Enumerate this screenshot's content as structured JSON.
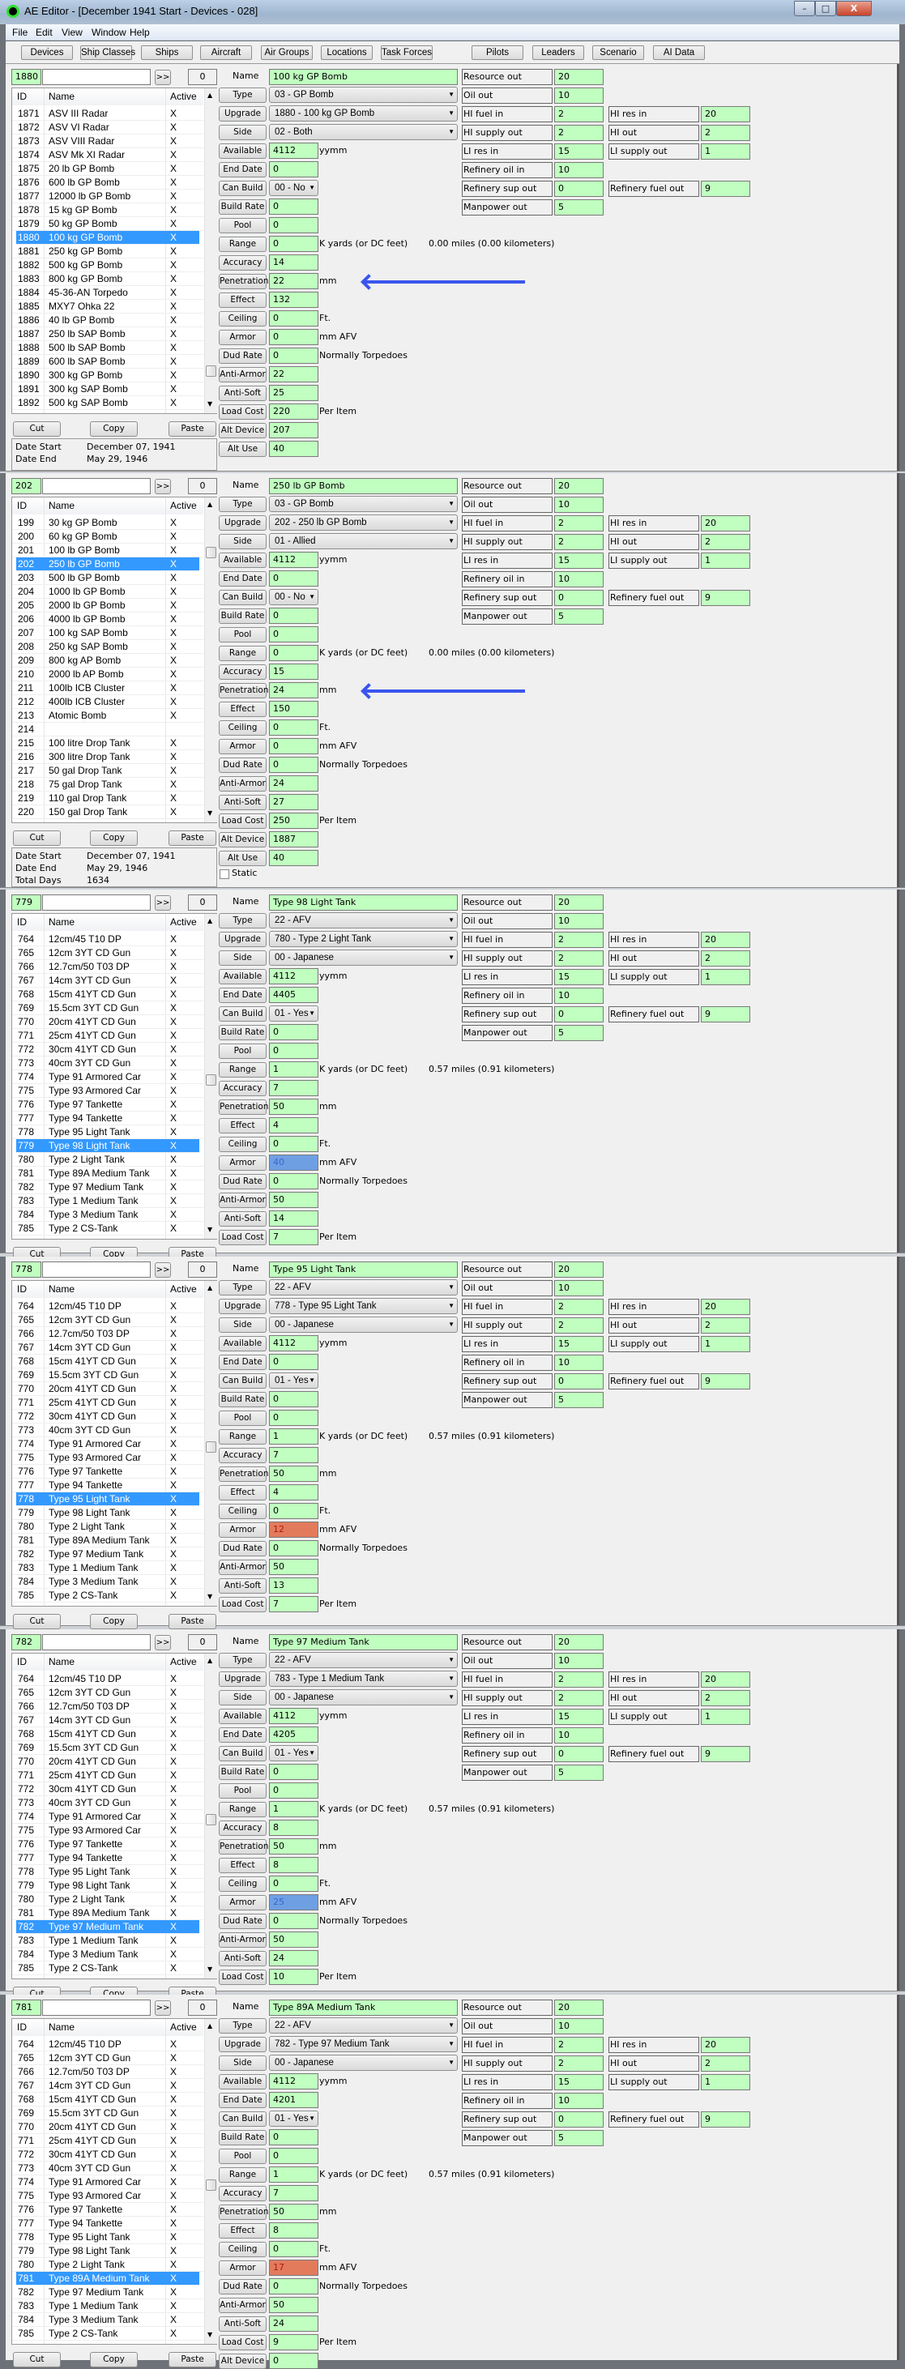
{
  "window": {
    "title": "AE Editor - [December 1941 Start - Devices - 028]",
    "controls": {
      "minimize": "–",
      "maximize": "□",
      "close": "X"
    },
    "menu": [
      "File",
      "Edit",
      "View",
      "Window",
      "Help"
    ],
    "toolbar": [
      "Devices",
      "Ship Classes",
      "Ships",
      "Aircraft",
      "Air Groups",
      "Locations",
      "Task Forces",
      "Pilots",
      "Leaders",
      "Scenario",
      "AI Data"
    ]
  },
  "labels": {
    "search_go": ">>",
    "name": "Name",
    "list_headers": [
      "ID",
      "Name",
      "Active"
    ],
    "fields": {
      "type": "Type",
      "upgrade": "Upgrade",
      "side": "Side",
      "available": "Available",
      "end_date": "End Date",
      "can_build": "Can Build",
      "build_rate": "Build Rate",
      "pool": "Pool",
      "range": "Range",
      "accuracy": "Accuracy",
      "penetration": "Penetration",
      "effect": "Effect",
      "ceiling": "Ceiling",
      "armor": "Armor",
      "dud_rate": "Dud Rate",
      "anti_armor": "Anti-Armor",
      "anti_soft": "Anti-Soft",
      "load_cost": "Load Cost",
      "alt_device": "Alt Device",
      "alt_use": "Alt Use"
    },
    "units": {
      "available": "yymm",
      "penetration": "mm",
      "ceiling": "Ft.",
      "armor": "mm AFV",
      "dud_rate": "Normally Torpedoes",
      "load_cost": "Per Item",
      "range_prefix": "K yards  (or DC feet)"
    },
    "cut": "Cut",
    "copy": "Copy",
    "paste": "Paste",
    "date_start": "Date Start",
    "date_end": "Date End",
    "total_days": "Total Days",
    "static": "Static"
  },
  "resources": [
    {
      "label": "Resource out",
      "value": "20"
    },
    {
      "label": "Oil out",
      "value": "10"
    },
    {
      "label": "HI fuel in",
      "value": "2",
      "label2": "HI res in",
      "value2": "20"
    },
    {
      "label": "HI supply out",
      "value": "2",
      "label2": "HI out",
      "value2": "2"
    },
    {
      "label": "LI res in",
      "value": "15",
      "label2": "LI supply out",
      "value2": "1"
    },
    {
      "label": "Refinery oil in",
      "value": "10"
    },
    {
      "label": "Refinery sup out",
      "value": "0",
      "label2": "Refinery fuel out",
      "value2": "9"
    },
    {
      "label": "Manpower out",
      "value": "5"
    }
  ],
  "lists": {
    "bombs_1871": [
      [
        "1871",
        "ASV III Radar",
        "X"
      ],
      [
        "1872",
        "ASV VI Radar",
        "X"
      ],
      [
        "1873",
        "ASV VIII Radar",
        "X"
      ],
      [
        "1874",
        "ASV Mk XI Radar",
        "X"
      ],
      [
        "1875",
        "20 lb GP Bomb",
        "X"
      ],
      [
        "1876",
        "600 lb GP Bomb",
        "X"
      ],
      [
        "1877",
        "12000 lb GP Bomb",
        "X"
      ],
      [
        "1878",
        "15 kg GP Bomb",
        "X"
      ],
      [
        "1879",
        "50 kg GP Bomb",
        "X"
      ],
      [
        "1880",
        "100 kg GP Bomb",
        "X"
      ],
      [
        "1881",
        "250 kg GP Bomb",
        "X"
      ],
      [
        "1882",
        "500 kg GP Bomb",
        "X"
      ],
      [
        "1883",
        "800 kg GP Bomb",
        "X"
      ],
      [
        "1884",
        "45-36-AN Torpedo",
        "X"
      ],
      [
        "1885",
        "MXY7 Ohka 22",
        "X"
      ],
      [
        "1886",
        "40 lb GP Bomb",
        "X"
      ],
      [
        "1887",
        "250 lb SAP Bomb",
        "X"
      ],
      [
        "1888",
        "500 lb SAP Bomb",
        "X"
      ],
      [
        "1889",
        "600 lb SAP Bomb",
        "X"
      ],
      [
        "1890",
        "300 kg GP Bomb",
        "X"
      ],
      [
        "1891",
        "300 kg SAP Bomb",
        "X"
      ],
      [
        "1892",
        "500 kg SAP Bomb",
        "X"
      ]
    ],
    "bombs_199": [
      [
        "199",
        "30 kg GP Bomb",
        "X"
      ],
      [
        "200",
        "60 kg GP Bomb",
        "X"
      ],
      [
        "201",
        "100 lb GP Bomb",
        "X"
      ],
      [
        "202",
        "250 lb GP Bomb",
        "X"
      ],
      [
        "203",
        "500 lb GP Bomb",
        "X"
      ],
      [
        "204",
        "1000 lb GP Bomb",
        "X"
      ],
      [
        "205",
        "2000 lb GP Bomb",
        "X"
      ],
      [
        "206",
        "4000 lb GP Bomb",
        "X"
      ],
      [
        "207",
        "100 kg SAP Bomb",
        "X"
      ],
      [
        "208",
        "250 kg SAP Bomb",
        "X"
      ],
      [
        "209",
        "800 kg AP Bomb",
        "X"
      ],
      [
        "210",
        "2000 lb AP Bomb",
        "X"
      ],
      [
        "211",
        "100lb ICB Cluster",
        "X"
      ],
      [
        "212",
        "400lb ICB Cluster",
        "X"
      ],
      [
        "213",
        "Atomic Bomb",
        "X"
      ],
      [
        "214",
        "",
        ""
      ],
      [
        "215",
        "100 litre Drop Tank",
        "X"
      ],
      [
        "216",
        "300 litre Drop Tank",
        "X"
      ],
      [
        "217",
        "50 gal Drop Tank",
        "X"
      ],
      [
        "218",
        "75  gal Drop Tank",
        "X"
      ],
      [
        "219",
        "110 gal Drop Tank",
        "X"
      ],
      [
        "220",
        "150 gal Drop Tank",
        "X"
      ]
    ],
    "tanks_764": [
      [
        "764",
        "12cm/45 T10 DP",
        "X"
      ],
      [
        "765",
        "12cm 3YT CD Gun",
        "X"
      ],
      [
        "766",
        "12.7cm/50 T03 DP",
        "X"
      ],
      [
        "767",
        "14cm 3YT CD Gun",
        "X"
      ],
      [
        "768",
        "15cm 41YT CD Gun",
        "X"
      ],
      [
        "769",
        "15.5cm 3YT CD Gun",
        "X"
      ],
      [
        "770",
        "20cm 41YT CD Gun",
        "X"
      ],
      [
        "771",
        "25cm 41YT CD Gun",
        "X"
      ],
      [
        "772",
        "30cm 41YT CD Gun",
        "X"
      ],
      [
        "773",
        "40cm 3YT CD Gun",
        "X"
      ],
      [
        "774",
        "Type 91 Armored Car",
        "X"
      ],
      [
        "775",
        "Type 93 Armored Car",
        "X"
      ],
      [
        "776",
        "Type 97 Tankette",
        "X"
      ],
      [
        "777",
        "Type 94 Tankette",
        "X"
      ],
      [
        "778",
        "Type 95 Light Tank",
        "X"
      ],
      [
        "779",
        "Type 98 Light Tank",
        "X"
      ],
      [
        "780",
        "Type 2 Light Tank",
        "X"
      ],
      [
        "781",
        "Type 89A Medium Tank",
        "X"
      ],
      [
        "782",
        "Type 97 Medium Tank",
        "X"
      ],
      [
        "783",
        "Type 1 Medium Tank",
        "X"
      ],
      [
        "784",
        "Type 3 Medium Tank",
        "X"
      ],
      [
        "785",
        "Type 2 CS-Tank",
        "X"
      ]
    ]
  },
  "panels": [
    {
      "id": "1880",
      "search": "",
      "count": "0",
      "list": "bombs_1871",
      "selected_id": "1880",
      "scroll_fraction": 0.9,
      "values": {
        "name": "100 kg GP Bomb",
        "type": "03 - GP Bomb",
        "upgrade": "1880 - 100 kg GP Bomb",
        "side": "02 - Both",
        "available": "4112",
        "end_date": "0",
        "can_build": "00 - No",
        "build_rate": "0",
        "pool": "0",
        "range": "0",
        "accuracy": "14",
        "penetration": "22",
        "effect": "132",
        "ceiling": "0",
        "armor": "0",
        "dud_rate": "0",
        "anti_armor": "22",
        "anti_soft": "25",
        "load_cost": "220",
        "alt_device": "207",
        "alt_use": "40"
      },
      "range_conversion": "0.00 miles  (0.00 kilometers)",
      "armor_highlight": null,
      "arrow_on": "penetration",
      "dates": {
        "start": "December 07, 1941",
        "end": "May 29, 1946"
      }
    },
    {
      "id": "202",
      "search": "",
      "count": "0",
      "list": "bombs_199",
      "selected_id": "202",
      "scroll_fraction": 0.12,
      "values": {
        "name": "250 lb GP Bomb",
        "type": "03 - GP Bomb",
        "upgrade": "202 - 250 lb GP Bomb",
        "side": "01 - Allied",
        "available": "4112",
        "end_date": "0",
        "can_build": "00 - No",
        "build_rate": "0",
        "pool": "0",
        "range": "0",
        "accuracy": "15",
        "penetration": "24",
        "effect": "150",
        "ceiling": "0",
        "armor": "0",
        "dud_rate": "0",
        "anti_armor": "24",
        "anti_soft": "27",
        "load_cost": "250",
        "alt_device": "1887",
        "alt_use": "40"
      },
      "range_conversion": "0.00 miles  (0.00 kilometers)",
      "armor_highlight": null,
      "arrow_on": "penetration",
      "static_checked": false,
      "dates": {
        "start": "December 07, 1941",
        "end": "May 29, 1946",
        "total_days": "1634"
      }
    },
    {
      "id": "779",
      "search": "",
      "count": "0",
      "list": "tanks_764",
      "selected_id": "779",
      "scroll_fraction": 0.5,
      "values": {
        "name": "Type 98 Light Tank",
        "type": "22 - AFV",
        "upgrade": "780 - Type 2 Light Tank",
        "side": "00 - Japanese",
        "available": "4112",
        "end_date": "4405",
        "can_build": "01 - Yes",
        "build_rate": "0",
        "pool": "0",
        "range": "1",
        "accuracy": "7",
        "penetration": "50",
        "effect": "4",
        "ceiling": "0",
        "armor": "40",
        "dud_rate": "0",
        "anti_armor": "50",
        "anti_soft": "14",
        "load_cost": "7"
      },
      "range_conversion": "0.57 miles  (0.91 kilometers)",
      "armor_highlight": "#6f9fe3"
    },
    {
      "id": "778",
      "search": "",
      "count": "0",
      "list": "tanks_764",
      "selected_id": "778",
      "scroll_fraction": 0.5,
      "values": {
        "name": "Type 95 Light Tank",
        "type": "22 - AFV",
        "upgrade": "778 - Type 95 Light Tank",
        "side": "00 - Japanese",
        "available": "4112",
        "end_date": "0",
        "can_build": "01 - Yes",
        "build_rate": "0",
        "pool": "0",
        "range": "1",
        "accuracy": "7",
        "penetration": "50",
        "effect": "4",
        "ceiling": "0",
        "armor": "12",
        "dud_rate": "0",
        "anti_armor": "50",
        "anti_soft": "13",
        "load_cost": "7"
      },
      "range_conversion": "0.57 miles  (0.91 kilometers)",
      "armor_highlight": "#e27b5c"
    },
    {
      "id": "782",
      "search": "",
      "count": "0",
      "list": "tanks_764",
      "selected_id": "782",
      "scroll_fraction": 0.5,
      "values": {
        "name": "Type 97 Medium Tank",
        "type": "22 - AFV",
        "upgrade": "783 - Type 1 Medium Tank",
        "side": "00 - Japanese",
        "available": "4112",
        "end_date": "4205",
        "can_build": "01 - Yes",
        "build_rate": "0",
        "pool": "0",
        "range": "1",
        "accuracy": "8",
        "penetration": "50",
        "effect": "8",
        "ceiling": "0",
        "armor": "25",
        "dud_rate": "0",
        "anti_armor": "50",
        "anti_soft": "24",
        "load_cost": "10"
      },
      "range_conversion": "0.57 miles  (0.91 kilometers)",
      "armor_highlight": "#6f9fe3"
    },
    {
      "id": "781",
      "search": "",
      "count": "0",
      "list": "tanks_764",
      "selected_id": "781",
      "scroll_fraction": 0.5,
      "values": {
        "name": "Type 89A Medium Tank",
        "type": "22 - AFV",
        "upgrade": "782 - Type 97 Medium Tank",
        "side": "00 - Japanese",
        "available": "4112",
        "end_date": "4201",
        "can_build": "01 - Yes",
        "build_rate": "0",
        "pool": "0",
        "range": "1",
        "accuracy": "7",
        "penetration": "50",
        "effect": "8",
        "ceiling": "0",
        "armor": "17",
        "dud_rate": "0",
        "anti_armor": "50",
        "anti_soft": "24",
        "load_cost": "9",
        "alt_device": "0"
      },
      "range_conversion": "0.57 miles  (0.91 kilometers)",
      "armor_highlight": "#e27b5c"
    }
  ]
}
